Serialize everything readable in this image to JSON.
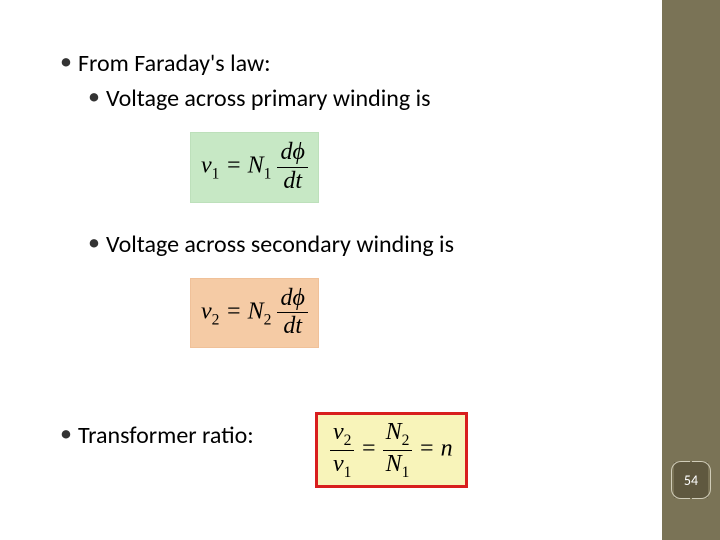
{
  "bullets": {
    "b1": "From Faraday's law:",
    "b1a": "Voltage across primary winding is",
    "b2": "Voltage across secondary winding is",
    "b3": "Transformer ratio:"
  },
  "equations": {
    "eq1": {
      "lhs_var": "v",
      "lhs_sub": "1",
      "coef_var": "N",
      "coef_sub": "1",
      "frac_num": "dϕ",
      "frac_den": "dt",
      "bg_color": "#c7e8c5"
    },
    "eq2": {
      "lhs_var": "v",
      "lhs_sub": "2",
      "coef_var": "N",
      "coef_sub": "2",
      "frac_num": "dϕ",
      "frac_den": "dt",
      "bg_color": "#f5cba5"
    },
    "eq3": {
      "frac1_num_var": "v",
      "frac1_num_sub": "2",
      "frac1_den_var": "v",
      "frac1_den_sub": "1",
      "frac2_num_var": "N",
      "frac2_num_sub": "2",
      "frac2_den_var": "N",
      "frac2_den_sub": "1",
      "rhs": "n",
      "bg_color": "#f8f4ba",
      "border_color": "#d81e1e"
    }
  },
  "page_number": "54",
  "colors": {
    "sidebar": "#7a7356",
    "badge_bg": "#5f583f"
  }
}
